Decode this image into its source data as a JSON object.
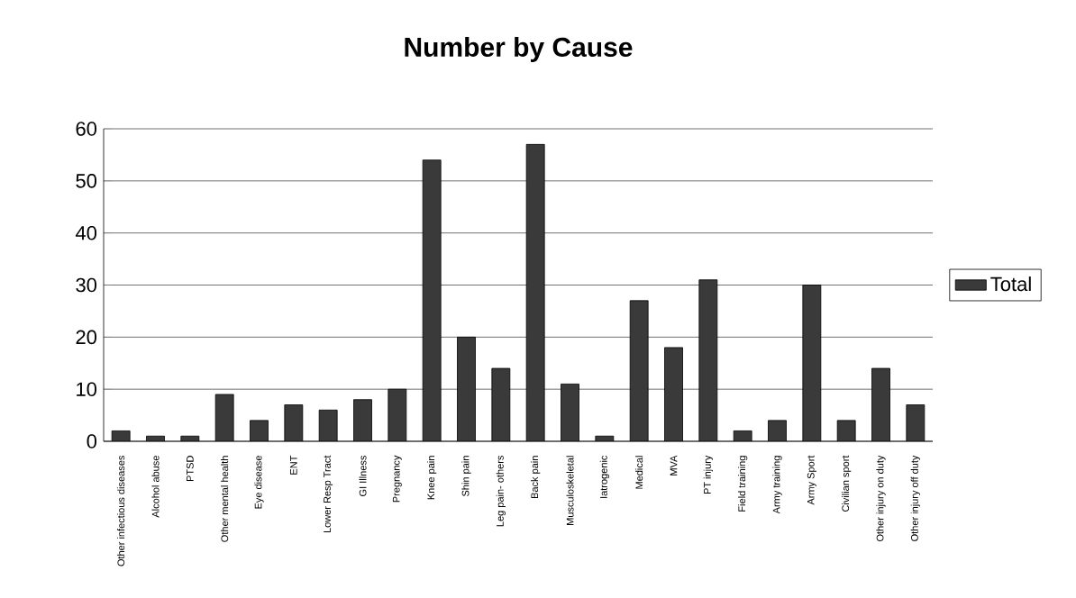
{
  "chart_data": {
    "type": "bar",
    "title": "Number by Cause",
    "categories": [
      "Other infectious diseases",
      "Alcohol abuse",
      "PTSD",
      "Other mental health",
      "Eye disease",
      "ENT",
      "Lower Resp Tract",
      "GI Illness",
      "Pregnancy",
      "Knee pain",
      "Shin pain",
      "Leg pain- others",
      "Back pain",
      "Musculoskeletal",
      "Iatrogenic",
      "Medical",
      "MVA",
      "PT injury",
      "Field training",
      "Army training",
      "Army Sport",
      "Civilian sport",
      "Other injury on duty",
      "Other injury off duty"
    ],
    "series": [
      {
        "name": "Total",
        "color": "#3a3a3a",
        "values": [
          2,
          1,
          1,
          9,
          4,
          7,
          6,
          8,
          10,
          54,
          20,
          14,
          57,
          11,
          1,
          27,
          18,
          31,
          2,
          4,
          30,
          4,
          14,
          7
        ]
      }
    ],
    "ylim": [
      0,
      60
    ],
    "yticks": [
      0,
      10,
      20,
      30,
      40,
      50,
      60
    ],
    "grid": "y",
    "legend": "right"
  }
}
